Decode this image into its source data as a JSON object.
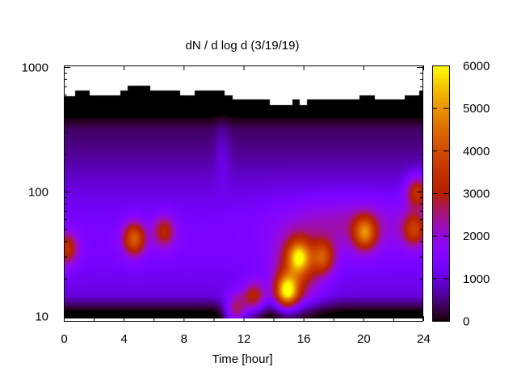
{
  "chart_data": {
    "type": "heatmap",
    "title": "dN / d log d (3/19/19)",
    "xlabel": "Time [hour]",
    "ylabel": "",
    "x_range": [
      0,
      24
    ],
    "y_range": [
      9,
      1000
    ],
    "y_scale": "log",
    "x_ticks": [
      "0",
      "4",
      "8",
      "12",
      "16",
      "20",
      "24"
    ],
    "y_ticks": [
      "10",
      "100",
      "1000"
    ],
    "colorbar": {
      "range": [
        0,
        6000
      ],
      "ticks": [
        "0",
        "1000",
        "2000",
        "3000",
        "4000",
        "5000",
        "6000"
      ],
      "colormap": "gnuplot (black-purple-red-yellow)"
    },
    "grid": false,
    "upper_size_limit": {
      "x": [
        0,
        0.5,
        1,
        1.5,
        2,
        2.5,
        3,
        3.5,
        4,
        4.5,
        5,
        5.5,
        6,
        6.5,
        7,
        7.5,
        8,
        8.5,
        9,
        9.5,
        10,
        10.5,
        11,
        11.5,
        12,
        12.5,
        13,
        13.5,
        14,
        14.5,
        15,
        15.5,
        16,
        16.5,
        17,
        17.5,
        18,
        18.5,
        19,
        19.5,
        20,
        20.5,
        21,
        21.5,
        22,
        22.5,
        23,
        23.5,
        24
      ],
      "d": [
        590,
        590,
        650,
        650,
        600,
        600,
        600,
        600,
        650,
        710,
        710,
        710,
        650,
        650,
        650,
        650,
        600,
        600,
        650,
        650,
        650,
        650,
        600,
        550,
        550,
        550,
        550,
        550,
        500,
        500,
        500,
        550,
        500,
        550,
        550,
        550,
        550,
        550,
        550,
        550,
        600,
        600,
        550,
        550,
        550,
        550,
        600,
        600,
        650
      ]
    },
    "hotspots": [
      {
        "time": 0.2,
        "d": 35,
        "value": 3200
      },
      {
        "time": 4.7,
        "d": 42,
        "value": 4100
      },
      {
        "time": 6.7,
        "d": 48,
        "value": 3000
      },
      {
        "time": 11.5,
        "d": 11,
        "value": 3600
      },
      {
        "time": 12.7,
        "d": 14,
        "value": 3300
      },
      {
        "time": 14.9,
        "d": 16,
        "value": 5400
      },
      {
        "time": 15.7,
        "d": 30,
        "value": 4500
      },
      {
        "time": 17.3,
        "d": 30,
        "value": 3500
      },
      {
        "time": 20.1,
        "d": 47,
        "value": 4100
      },
      {
        "time": 23.6,
        "d": 100,
        "value": 3500
      },
      {
        "time": 23.4,
        "d": 50,
        "value": 3300
      }
    ]
  }
}
